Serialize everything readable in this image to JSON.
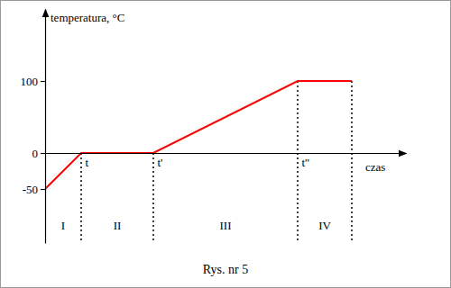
{
  "chart_data": {
    "type": "line",
    "caption": "Rys. nr 5",
    "y_label": "temperatura, °C",
    "x_label": "czas",
    "x": [
      0,
      1,
      3,
      7,
      8.5
    ],
    "values": [
      -50,
      0,
      0,
      100,
      100
    ],
    "color": "#ff0000",
    "xlim": [
      0,
      10
    ],
    "xticks": [
      {
        "value": 1,
        "label": "t"
      },
      {
        "value": 3,
        "label": "t'"
      },
      {
        "value": 7,
        "label": "t''"
      }
    ],
    "ylim": [
      -125,
      200
    ],
    "yticks": [
      -50,
      0,
      100
    ],
    "regions": [
      "I",
      "II",
      "III",
      "IV"
    ],
    "grid": false
  }
}
